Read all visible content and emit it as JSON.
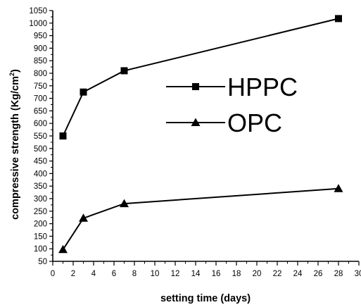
{
  "chart_data": {
    "type": "line",
    "title": "",
    "xlabel": "setting  time (days)",
    "ylabel": "compressive  strength (Kg/cm",
    "ylabel_superscript": "2",
    "ylabel_close": ")",
    "xlim": [
      0,
      30
    ],
    "ylim": [
      50,
      1050
    ],
    "x_ticks": [
      "0",
      "2",
      "4",
      "6",
      "8",
      "10",
      "12",
      "14",
      "16",
      "18",
      "20",
      "22",
      "24",
      "26",
      "28",
      "30"
    ],
    "y_ticks": [
      "50",
      "100",
      "150",
      "200",
      "250",
      "300",
      "350",
      "400",
      "450",
      "500",
      "550",
      "600",
      "650",
      "700",
      "750",
      "800",
      "850",
      "900",
      "950",
      "1000",
      "1050"
    ],
    "grid": false,
    "legend_position": "upper-center",
    "series": [
      {
        "name": "HPPC",
        "marker": "square",
        "x": [
          1,
          3,
          7,
          28
        ],
        "y": [
          550,
          725,
          810,
          1018
        ]
      },
      {
        "name": "OPC",
        "marker": "triangle",
        "x": [
          1,
          3,
          7,
          28
        ],
        "y": [
          97,
          222,
          280,
          340
        ]
      }
    ]
  },
  "colors": {
    "line": "#000000",
    "background": "#ffffff"
  }
}
